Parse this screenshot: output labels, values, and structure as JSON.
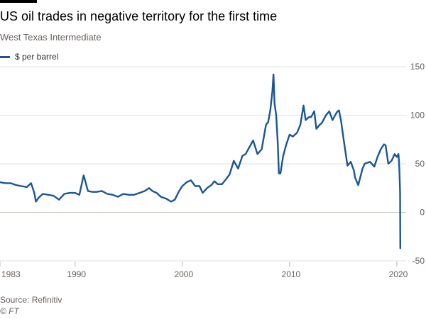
{
  "header": {
    "title": "US oil trades in negative territory for the first time",
    "subtitle": "West Texas Intermediate"
  },
  "footer": {
    "source": "Source: Refinitiv",
    "copyright": "© FT"
  },
  "colors": {
    "line": "#1a5694",
    "grid": "#e6e2dc",
    "zero": "#c8c3bc",
    "text": "#66605c",
    "bar": "#000000"
  },
  "chart_data": {
    "type": "line",
    "title": "US oil trades in negative territory for the first time",
    "subtitle": "West Texas Intermediate",
    "xlabel": "",
    "ylabel": "$ per barrel",
    "xlim": [
      1983,
      2020.6
    ],
    "ylim": [
      -50,
      150
    ],
    "yticks": [
      150,
      100,
      50,
      0,
      -50
    ],
    "xticks": [
      "1983",
      "1990",
      "2000",
      "2010",
      "2020"
    ],
    "grid": true,
    "legend": "top-left",
    "series": [
      {
        "name": "$ per barrel",
        "x": [
          1983,
          1983.5,
          1984,
          1984.5,
          1985,
          1985.5,
          1985.9,
          1986.2,
          1986.35,
          1986.6,
          1987,
          1987.5,
          1988,
          1988.5,
          1989,
          1989.5,
          1990,
          1990.4,
          1990.6,
          1990.8,
          1991.0,
          1991.2,
          1991.6,
          1992,
          1992.5,
          1993,
          1993.5,
          1994,
          1994.5,
          1995,
          1995.5,
          1996,
          1996.5,
          1996.9,
          1997.2,
          1997.6,
          1998,
          1998.5,
          1998.95,
          1999.3,
          1999.7,
          2000,
          2000.4,
          2000.8,
          2001.2,
          2001.6,
          2001.9,
          2002.3,
          2002.7,
          2003.0,
          2003.3,
          2003.7,
          2004,
          2004.4,
          2004.8,
          2005.2,
          2005.6,
          2005.9,
          2006.3,
          2006.6,
          2007.0,
          2007.4,
          2007.8,
          2008.0,
          2008.2,
          2008.4,
          2008.5,
          2008.6,
          2008.75,
          2008.9,
          2009.0,
          2009.15,
          2009.4,
          2009.7,
          2010,
          2010.3,
          2010.7,
          2011,
          2011.3,
          2011.5,
          2011.8,
          2012.0,
          2012.3,
          2012.5,
          2012.8,
          2013.0,
          2013.4,
          2013.7,
          2014.0,
          2014.4,
          2014.6,
          2014.8,
          2015.0,
          2015.4,
          2015.7,
          2016.0,
          2016.1,
          2016.4,
          2016.8,
          2017.0,
          2017.5,
          2017.9,
          2018.2,
          2018.5,
          2018.8,
          2018.95,
          2019.2,
          2019.5,
          2019.8,
          2020.0,
          2020.15,
          2020.2,
          2020.25,
          2020.3,
          2020.32
        ],
        "values": [
          31,
          30,
          30,
          28,
          27,
          26,
          30,
          20,
          11,
          15,
          19,
          18,
          17,
          13,
          19,
          20,
          20,
          18,
          28,
          38,
          30,
          22,
          21,
          21,
          22,
          19,
          18,
          16,
          19,
          18,
          18,
          20,
          22,
          25,
          22,
          20,
          16,
          14,
          11,
          13,
          22,
          27,
          31,
          33,
          27,
          27,
          20,
          25,
          28,
          32,
          29,
          29,
          33,
          39,
          53,
          45,
          58,
          60,
          68,
          74,
          60,
          65,
          90,
          93,
          105,
          125,
          142,
          112,
          100,
          70,
          40,
          40,
          58,
          70,
          80,
          78,
          82,
          90,
          110,
          95,
          98,
          98,
          104,
          86,
          90,
          92,
          100,
          104,
          95,
          103,
          105,
          94,
          78,
          48,
          52,
          43,
          36,
          28,
          45,
          50,
          52,
          47,
          57,
          65,
          70,
          69,
          50,
          53,
          60,
          57,
          60,
          52,
          40,
          20,
          -37
        ]
      }
    ]
  }
}
